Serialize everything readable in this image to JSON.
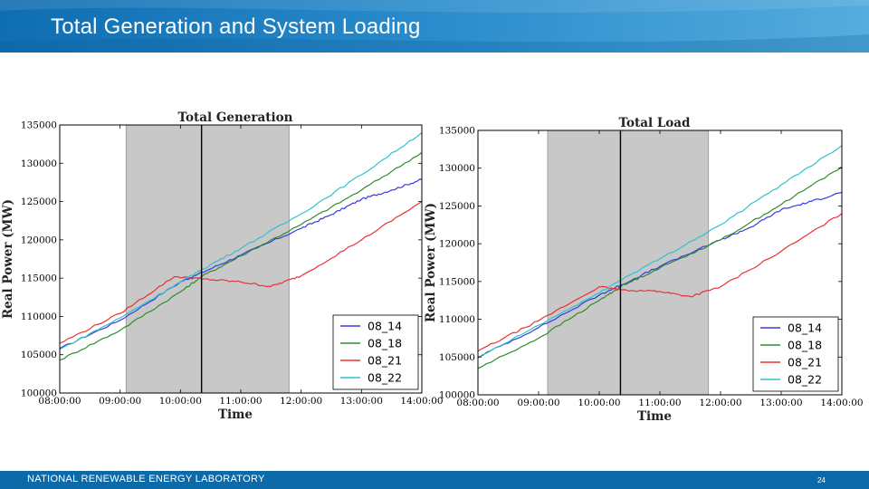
{
  "slide": {
    "title": "Total Generation and System Loading",
    "footer": "NATIONAL RENEWABLE ENERGY LABORATORY",
    "page_number": "24",
    "colors": {
      "header": "#1a7cc0",
      "footer": "#0d6aa8"
    }
  },
  "chart_data": [
    {
      "type": "line",
      "title": "Total Generation",
      "xlabel": "Time",
      "ylabel": "Real Power (MW)",
      "x_ticks": [
        "08:00:00",
        "09:00:00",
        "10:00:00",
        "11:00:00",
        "12:00:00",
        "13:00:00",
        "14:00:00"
      ],
      "y_ticks": [
        "100000",
        "105000",
        "110000",
        "115000",
        "120000",
        "125000",
        "130000",
        "135000"
      ],
      "xlim": [
        8,
        14
      ],
      "ylim": [
        100000,
        135000
      ],
      "shaded_span": [
        9.1,
        11.8
      ],
      "vline": 10.35,
      "legend_position": "bottom-right",
      "series": [
        {
          "name": "08_14",
          "color": "#3a3ae0",
          "points": [
            [
              8,
              105800
            ],
            [
              9,
              109500
            ],
            [
              10,
              114500
            ],
            [
              10.35,
              115700
            ],
            [
              11,
              118000
            ],
            [
              12,
              121500
            ],
            [
              12.5,
              123300
            ],
            [
              13,
              125300
            ],
            [
              13.5,
              126500
            ],
            [
              14,
              127900
            ]
          ]
        },
        {
          "name": "08_18",
          "color": "#2e8b2e",
          "points": [
            [
              8,
              104300
            ],
            [
              9,
              108200
            ],
            [
              10,
              113200
            ],
            [
              10.35,
              115200
            ],
            [
              11,
              117900
            ],
            [
              12,
              122000
            ],
            [
              13,
              126500
            ],
            [
              14,
              131400
            ]
          ]
        },
        {
          "name": "08_21",
          "color": "#e83232",
          "points": [
            [
              8,
              106500
            ],
            [
              9,
              110400
            ],
            [
              9.9,
              115200
            ],
            [
              10.35,
              114900
            ],
            [
              11,
              114500
            ],
            [
              11.5,
              113900
            ],
            [
              12,
              115300
            ],
            [
              13,
              120000
            ],
            [
              14,
              125000
            ]
          ]
        },
        {
          "name": "08_22",
          "color": "#2ec4c8",
          "points": [
            [
              8,
              105700
            ],
            [
              9,
              109800
            ],
            [
              10,
              114500
            ],
            [
              10.35,
              116100
            ],
            [
              11,
              118900
            ],
            [
              12,
              123400
            ],
            [
              13,
              128500
            ],
            [
              14,
              134000
            ]
          ]
        }
      ]
    },
    {
      "type": "line",
      "title": "Total Load",
      "xlabel": "Time",
      "ylabel": "Real Power (MW)",
      "x_ticks": [
        "08:00:00",
        "09:00:00",
        "10:00:00",
        "11:00:00",
        "12:00:00",
        "13:00:00",
        "14:00:00"
      ],
      "y_ticks": [
        "100000",
        "105000",
        "110000",
        "115000",
        "120000",
        "125000",
        "130000",
        "135000"
      ],
      "xlim": [
        8,
        14
      ],
      "ylim": [
        100000,
        135000
      ],
      "shaded_span": [
        9.15,
        11.8
      ],
      "vline": 10.35,
      "legend_position": "bottom-right",
      "series": [
        {
          "name": "08_14",
          "color": "#3a3ae0",
          "points": [
            [
              8,
              105000
            ],
            [
              9,
              108900
            ],
            [
              10,
              113200
            ],
            [
              10.35,
              114500
            ],
            [
              11,
              117000
            ],
            [
              12,
              120500
            ],
            [
              12.5,
              122200
            ],
            [
              13,
              124500
            ],
            [
              13.5,
              125600
            ],
            [
              14,
              126800
            ]
          ]
        },
        {
          "name": "08_18",
          "color": "#2e8b2e",
          "points": [
            [
              8,
              103500
            ],
            [
              9,
              107500
            ],
            [
              10,
              112500
            ],
            [
              10.35,
              114300
            ],
            [
              11,
              116800
            ],
            [
              12,
              120500
            ],
            [
              13,
              125200
            ],
            [
              14,
              130200
            ]
          ]
        },
        {
          "name": "08_21",
          "color": "#e83232",
          "points": [
            [
              8,
              105800
            ],
            [
              9,
              109800
            ],
            [
              10,
              114300
            ],
            [
              10.35,
              113900
            ],
            [
              11,
              113700
            ],
            [
              11.5,
              113000
            ],
            [
              12,
              114300
            ],
            [
              13,
              119000
            ],
            [
              14,
              124000
            ]
          ]
        },
        {
          "name": "08_22",
          "color": "#2ec4c8",
          "points": [
            [
              8,
              104900
            ],
            [
              9,
              109200
            ],
            [
              10,
              113500
            ],
            [
              10.35,
              115200
            ],
            [
              11,
              118000
            ],
            [
              12,
              122500
            ],
            [
              13,
              127800
            ],
            [
              14,
              133000
            ]
          ]
        }
      ]
    }
  ]
}
